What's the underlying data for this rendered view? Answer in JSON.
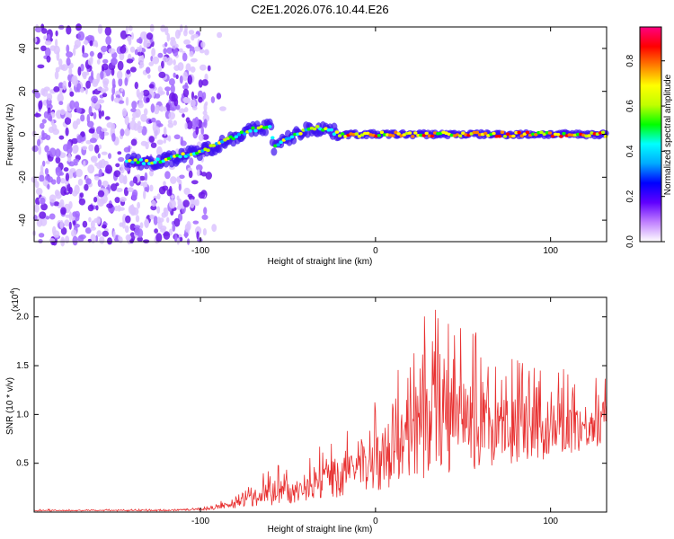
{
  "title": "C2E1.2026.076.10.44.E26",
  "chart_data": [
    {
      "type": "heatmap",
      "xlabel": "Height of straight line (km)",
      "ylabel": "Frequency (Hz)",
      "xlim": [
        -195,
        132
      ],
      "ylim": [
        -50,
        50
      ],
      "xticks": [
        -100,
        0,
        100
      ],
      "xtick_labels": [
        "-100",
        "0",
        "100"
      ],
      "yticks": [
        -40,
        -20,
        0,
        20,
        40
      ],
      "ytick_labels": [
        "-40",
        "-20",
        "0",
        "20",
        "40"
      ],
      "colorbar": {
        "label": "Normalized spectral amplitude",
        "range": [
          0,
          0.95
        ],
        "ticks": [
          0.0,
          0.2,
          0.4,
          0.6,
          0.8
        ],
        "tick_labels": [
          "0.0",
          "0.2",
          "0.4",
          "0.6",
          "0.8"
        ],
        "colormap": [
          "#ffffff",
          "#c080ff",
          "#6000ff",
          "#0000ff",
          "#00aaff",
          "#00ffff",
          "#00ff00",
          "#c0ff00",
          "#ffff00",
          "#ff8000",
          "#ff0000",
          "#ff0080"
        ]
      },
      "noise_region": {
        "x": [
          -195,
          -96
        ],
        "freq": [
          -50,
          50
        ]
      },
      "ridge": {
        "x": [
          -142,
          -130,
          -120,
          -110,
          -100,
          -90,
          -80,
          -70,
          -60,
          -58,
          -50,
          -40,
          -30,
          -20,
          -10,
          0,
          20,
          50,
          100,
          132
        ],
        "freq": [
          -12,
          -13,
          -12,
          -10,
          -8,
          -5,
          -1,
          2,
          4,
          -6,
          -2,
          2,
          3,
          0,
          0,
          0,
          0,
          0,
          0,
          0
        ]
      }
    },
    {
      "type": "line",
      "xlabel": "Height of straight line (km)",
      "ylabel": "SNR (10 * v/v)",
      "scale_label": "(x10",
      "scale_exponent": "4",
      "xlim": [
        -195,
        132
      ],
      "ylim": [
        0,
        2.2
      ],
      "xticks": [
        -100,
        0,
        100
      ],
      "xtick_labels": [
        "-100",
        "0",
        "100"
      ],
      "yticks": [
        0.5,
        1.0,
        1.5,
        2.0
      ],
      "ytick_labels": [
        "0.5",
        "1.0",
        "1.5",
        "2.0"
      ],
      "color": "#e83030",
      "envelope": {
        "x": [
          -195,
          -120,
          -95,
          -80,
          -70,
          -60,
          -50,
          -40,
          -30,
          -20,
          -10,
          0,
          10,
          20,
          30,
          40,
          60,
          80,
          100,
          132
        ],
        "low": [
          0.01,
          0.01,
          0.02,
          0.04,
          0.06,
          0.06,
          0.08,
          0.1,
          0.15,
          0.15,
          0.2,
          0.2,
          0.25,
          0.3,
          0.35,
          0.4,
          0.45,
          0.5,
          0.55,
          0.7
        ],
        "high": [
          0.03,
          0.03,
          0.06,
          0.18,
          0.3,
          0.55,
          0.45,
          0.55,
          0.7,
          0.8,
          0.95,
          1.2,
          1.4,
          1.6,
          2.15,
          2.1,
          1.8,
          1.6,
          1.5,
          1.4
        ]
      }
    }
  ]
}
